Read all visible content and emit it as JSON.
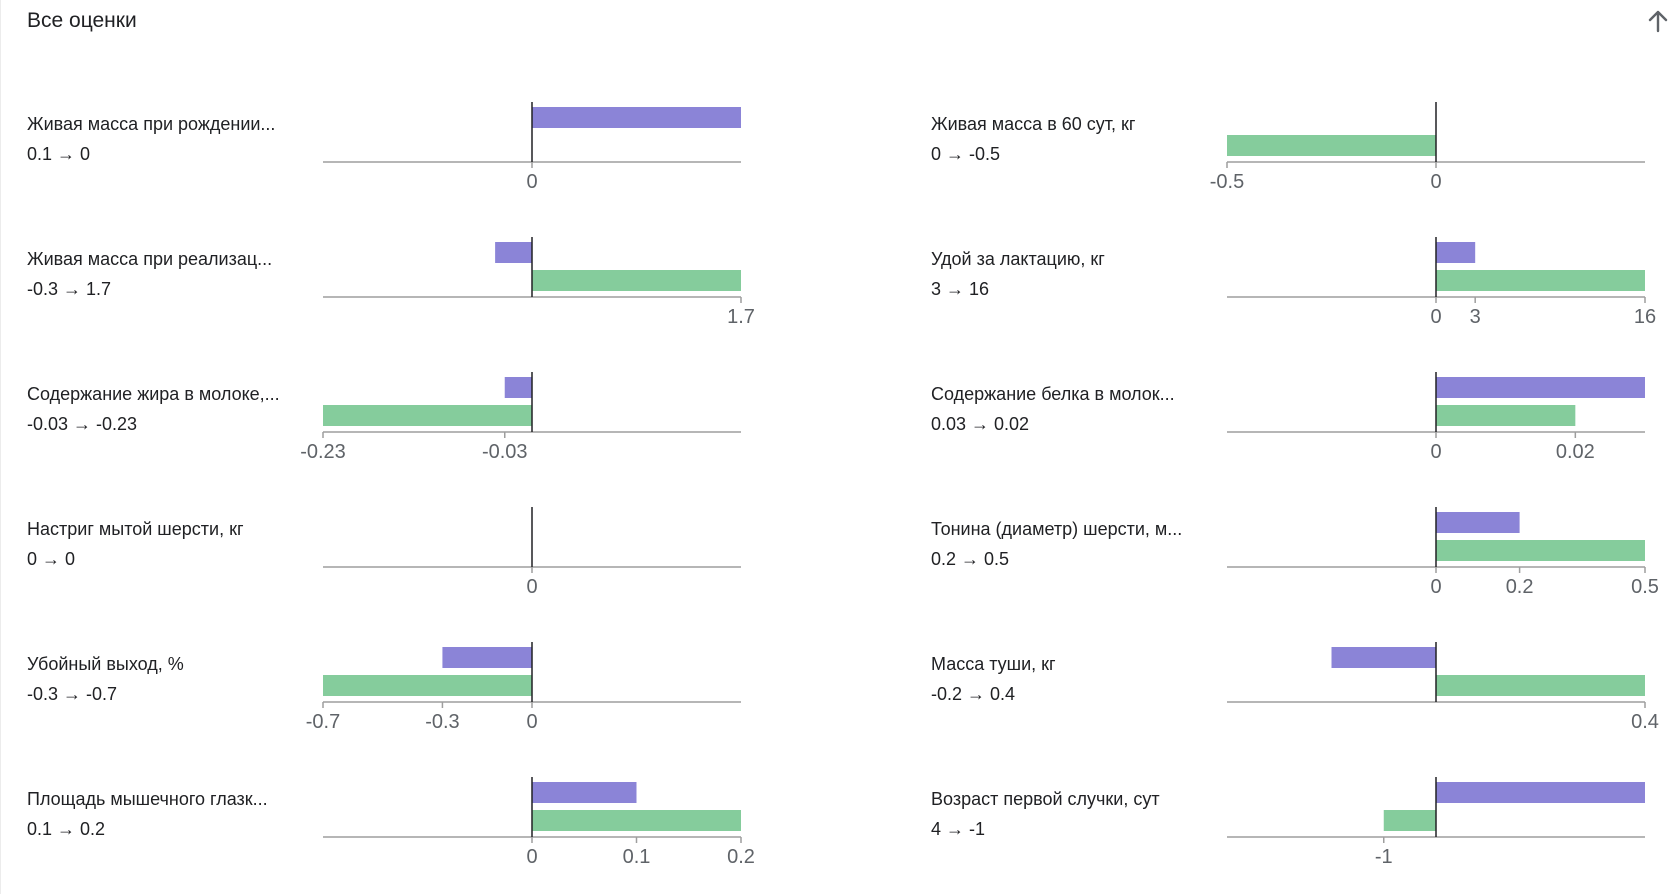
{
  "header": {
    "title": "Все оценки",
    "collapse_icon": "arrow-up-icon"
  },
  "colors": {
    "before": "#8b84d7",
    "after": "#85cc9c",
    "baseline": "#9e9e9e",
    "zero_line": "#202124"
  },
  "chart_data": [
    {
      "type": "bar",
      "title": "Живая масса при рождении...",
      "delta": "0.1 → 0",
      "series": [
        {
          "values": [
            0.1
          ]
        },
        {
          "values": [
            0
          ]
        }
      ],
      "ticks": [
        {
          "value": 0,
          "label": "0"
        }
      ],
      "xlim": [
        -0.1,
        0.1
      ]
    },
    {
      "type": "bar",
      "title": "Живая масса в 60 сут, кг",
      "delta": "0 → -0.5",
      "series": [
        {
          "values": [
            0
          ]
        },
        {
          "values": [
            -0.5
          ]
        }
      ],
      "ticks": [
        {
          "value": -0.5,
          "label": "-0.5"
        },
        {
          "value": 0,
          "label": "0"
        }
      ],
      "xlim": [
        -0.5,
        0.5
      ]
    },
    {
      "type": "bar",
      "title": "Живая масса при реализац...",
      "delta": "-0.3 → 1.7",
      "series": [
        {
          "values": [
            -0.3
          ]
        },
        {
          "values": [
            1.7
          ]
        }
      ],
      "ticks": [
        {
          "value": 1.7,
          "label": "1.7"
        }
      ],
      "xlim": [
        -1.7,
        1.7
      ]
    },
    {
      "type": "bar",
      "title": "Удой за лактацию, кг",
      "delta": "3 → 16",
      "series": [
        {
          "values": [
            3
          ]
        },
        {
          "values": [
            16
          ]
        }
      ],
      "ticks": [
        {
          "value": 0,
          "label": "0"
        },
        {
          "value": 3,
          "label": "3"
        },
        {
          "value": 16,
          "label": "16"
        }
      ],
      "xlim": [
        -16,
        16
      ]
    },
    {
      "type": "bar",
      "title": "Содержание жира в молоке,...",
      "delta": "-0.03 → -0.23",
      "series": [
        {
          "values": [
            -0.03
          ]
        },
        {
          "values": [
            -0.23
          ]
        }
      ],
      "ticks": [
        {
          "value": -0.23,
          "label": "-0.23"
        },
        {
          "value": -0.03,
          "label": "-0.03"
        }
      ],
      "xlim": [
        -0.23,
        0.23
      ]
    },
    {
      "type": "bar",
      "title": "Содержание белка в молок...",
      "delta": "0.03 → 0.02",
      "series": [
        {
          "values": [
            0.03
          ]
        },
        {
          "values": [
            0.02
          ]
        }
      ],
      "ticks": [
        {
          "value": 0,
          "label": "0"
        },
        {
          "value": 0.02,
          "label": "0.02"
        }
      ],
      "xlim": [
        -0.03,
        0.03
      ]
    },
    {
      "type": "bar",
      "title": "Настриг мытой шерсти, кг",
      "delta": "0 → 0",
      "series": [
        {
          "values": [
            0
          ]
        },
        {
          "values": [
            0
          ]
        }
      ],
      "ticks": [
        {
          "value": 0,
          "label": "0"
        }
      ],
      "xlim": [
        -1,
        1
      ]
    },
    {
      "type": "bar",
      "title": "Тонина (диаметр) шерсти, м...",
      "delta": "0.2 → 0.5",
      "series": [
        {
          "values": [
            0.2
          ]
        },
        {
          "values": [
            0.5
          ]
        }
      ],
      "ticks": [
        {
          "value": 0,
          "label": "0"
        },
        {
          "value": 0.2,
          "label": "0.2"
        },
        {
          "value": 0.5,
          "label": "0.5"
        }
      ],
      "xlim": [
        -0.5,
        0.5
      ]
    },
    {
      "type": "bar",
      "title": "Убойный выход, %",
      "delta": "-0.3 → -0.7",
      "series": [
        {
          "values": [
            -0.3
          ]
        },
        {
          "values": [
            -0.7
          ]
        }
      ],
      "ticks": [
        {
          "value": -0.7,
          "label": "-0.7"
        },
        {
          "value": -0.3,
          "label": "-0.3"
        },
        {
          "value": 0,
          "label": "0"
        }
      ],
      "xlim": [
        -0.7,
        0.7
      ]
    },
    {
      "type": "bar",
      "title": "Масса туши, кг",
      "delta": "-0.2 → 0.4",
      "series": [
        {
          "values": [
            -0.2
          ]
        },
        {
          "values": [
            0.4
          ]
        }
      ],
      "ticks": [
        {
          "value": 0.4,
          "label": "0.4"
        }
      ],
      "xlim": [
        -0.4,
        0.4
      ]
    },
    {
      "type": "bar",
      "title": "Площадь мышечного глазк...",
      "delta": "0.1 → 0.2",
      "series": [
        {
          "values": [
            0.1
          ]
        },
        {
          "values": [
            0.2
          ]
        }
      ],
      "ticks": [
        {
          "value": 0,
          "label": "0"
        },
        {
          "value": 0.1,
          "label": "0.1"
        },
        {
          "value": 0.2,
          "label": "0.2"
        }
      ],
      "xlim": [
        -0.2,
        0.2
      ]
    },
    {
      "type": "bar",
      "title": "Возраст первой случки, сут",
      "delta": "4 → -1",
      "series": [
        {
          "values": [
            4
          ]
        },
        {
          "values": [
            -1
          ]
        }
      ],
      "ticks": [
        {
          "value": -1,
          "label": "-1"
        }
      ],
      "xlim": [
        -4,
        4
      ]
    }
  ]
}
